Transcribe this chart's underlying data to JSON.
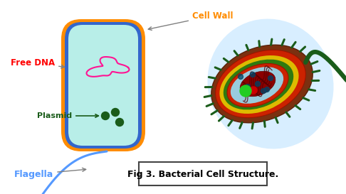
{
  "bg_color": "#ffffff",
  "cell_outer_color": "#FF8C00",
  "cell_inner_color": "#3366CC",
  "cell_fill_color": "#B8EEE8",
  "dna_color": "#FF1493",
  "plasmid_color": "#1a5c1a",
  "flagella_color": "#5599FF",
  "label_cell_wall": "Cell Wall",
  "label_cell_wall_color": "#FF8C00",
  "label_free_dna": "Free DNA",
  "label_free_dna_color": "#FF0000",
  "label_plasmid": "Plasmid",
  "label_plasmid_color": "#1a5c1a",
  "label_flagella": "Flagella",
  "label_flagella_color": "#5599FF",
  "caption_text": "Fig 3. Bacterial Cell Structure.",
  "caption_fontsize": 9,
  "right_cell_bg": "#D8EEFF",
  "brown_color": "#7B3010",
  "red_color": "#CC2200",
  "yellow_color": "#DDBB00",
  "green_color": "#2E7A10",
  "cytoplasm_color": "#99CCDD",
  "nucleoid_color": "#8B0000",
  "spike_color": "#1a5c1a",
  "flagella2_color": "#1a5c1a"
}
